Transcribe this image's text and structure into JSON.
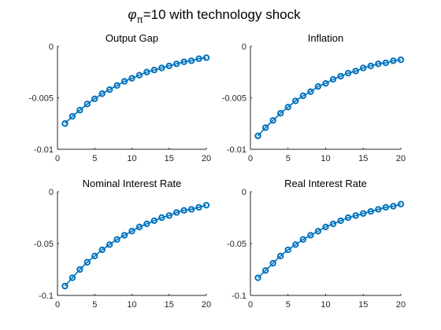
{
  "figure": {
    "title_symbol": "φ",
    "title_subscript": "π",
    "title_rest": "=10 with technology shock"
  },
  "chart_data": [
    {
      "type": "line",
      "title": "Output Gap",
      "xlabel": "",
      "ylabel": "",
      "xlim": [
        0,
        20
      ],
      "ylim": [
        -0.01,
        0
      ],
      "xticks": [
        0,
        5,
        10,
        15,
        20
      ],
      "yticks": [
        0,
        -0.005,
        -0.01
      ],
      "xtick_labels": [
        "0",
        "5",
        "10",
        "15",
        "20"
      ],
      "ytick_labels": [
        "0",
        "-0.005",
        "-0.01"
      ],
      "grid": false,
      "marker": "o",
      "color": "#0072BD",
      "x": [
        1,
        2,
        3,
        4,
        5,
        6,
        7,
        8,
        9,
        10,
        11,
        12,
        13,
        14,
        15,
        16,
        17,
        18,
        19,
        20
      ],
      "y": [
        -0.0075,
        -0.0068,
        -0.0062,
        -0.0056,
        -0.0051,
        -0.0046,
        -0.0042,
        -0.0038,
        -0.0034,
        -0.0031,
        -0.0028,
        -0.0025,
        -0.0023,
        -0.0021,
        -0.0019,
        -0.0017,
        -0.0015,
        -0.0014,
        -0.0012,
        -0.0011
      ]
    },
    {
      "type": "line",
      "title": "Inflation",
      "xlabel": "",
      "ylabel": "",
      "xlim": [
        0,
        20
      ],
      "ylim": [
        -0.01,
        0
      ],
      "xticks": [
        0,
        5,
        10,
        15,
        20
      ],
      "yticks": [
        0,
        -0.005,
        -0.01
      ],
      "xtick_labels": [
        "0",
        "5",
        "10",
        "15",
        "20"
      ],
      "ytick_labels": [
        "0",
        "-0.005",
        "-0.01"
      ],
      "grid": false,
      "marker": "o",
      "color": "#0072BD",
      "x": [
        1,
        2,
        3,
        4,
        5,
        6,
        7,
        8,
        9,
        10,
        11,
        12,
        13,
        14,
        15,
        16,
        17,
        18,
        19,
        20
      ],
      "y": [
        -0.0087,
        -0.0079,
        -0.0072,
        -0.0065,
        -0.0059,
        -0.0053,
        -0.0048,
        -0.0044,
        -0.0039,
        -0.0036,
        -0.0032,
        -0.0029,
        -0.0026,
        -0.0024,
        -0.0021,
        -0.0019,
        -0.0017,
        -0.0016,
        -0.0014,
        -0.0013
      ]
    },
    {
      "type": "line",
      "title": "Nominal Interest Rate",
      "xlabel": "",
      "ylabel": "",
      "xlim": [
        0,
        20
      ],
      "ylim": [
        -0.1,
        0
      ],
      "xticks": [
        0,
        5,
        10,
        15,
        20
      ],
      "yticks": [
        0,
        -0.05,
        -0.1
      ],
      "xtick_labels": [
        "0",
        "5",
        "10",
        "15",
        "20"
      ],
      "ytick_labels": [
        "0",
        "-0.05",
        "-0.1"
      ],
      "grid": false,
      "marker": "o",
      "color": "#0072BD",
      "x": [
        1,
        2,
        3,
        4,
        5,
        6,
        7,
        8,
        9,
        10,
        11,
        12,
        13,
        14,
        15,
        16,
        17,
        18,
        19,
        20
      ],
      "y": [
        -0.091,
        -0.083,
        -0.075,
        -0.068,
        -0.062,
        -0.056,
        -0.051,
        -0.046,
        -0.042,
        -0.038,
        -0.034,
        -0.031,
        -0.028,
        -0.025,
        -0.023,
        -0.02,
        -0.018,
        -0.017,
        -0.015,
        -0.013
      ]
    },
    {
      "type": "line",
      "title": "Real Interest Rate",
      "xlabel": "",
      "ylabel": "",
      "xlim": [
        0,
        20
      ],
      "ylim": [
        -0.1,
        0
      ],
      "xticks": [
        0,
        5,
        10,
        15,
        20
      ],
      "yticks": [
        0,
        -0.05,
        -0.1
      ],
      "xtick_labels": [
        "0",
        "5",
        "10",
        "15",
        "20"
      ],
      "ytick_labels": [
        "0",
        "-0.05",
        "-0.1"
      ],
      "grid": false,
      "marker": "o",
      "color": "#0072BD",
      "x": [
        1,
        2,
        3,
        4,
        5,
        6,
        7,
        8,
        9,
        10,
        11,
        12,
        13,
        14,
        15,
        16,
        17,
        18,
        19,
        20
      ],
      "y": [
        -0.083,
        -0.076,
        -0.069,
        -0.062,
        -0.056,
        -0.051,
        -0.046,
        -0.042,
        -0.038,
        -0.034,
        -0.031,
        -0.028,
        -0.025,
        -0.023,
        -0.021,
        -0.019,
        -0.017,
        -0.015,
        -0.014,
        -0.012
      ]
    }
  ]
}
